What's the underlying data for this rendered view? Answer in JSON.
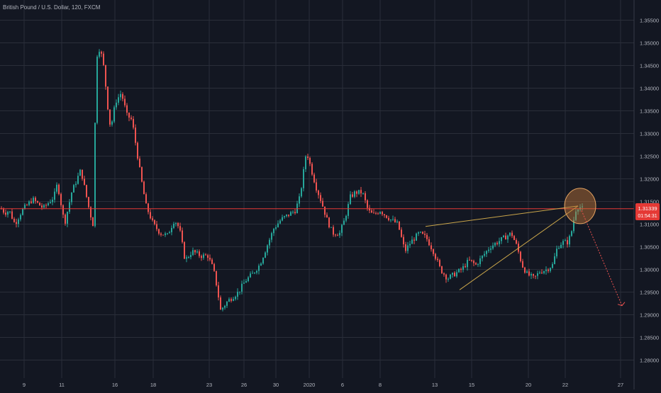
{
  "header": {
    "symbol_label": "British Pound / U.S. Dollar, 120, FXCM"
  },
  "price_tag": {
    "price": "1.31339",
    "countdown": "01:54:31"
  },
  "colors": {
    "background": "#131722",
    "grid": "#2a2e39",
    "axis_text": "#b2b5be",
    "up": "#26a69a",
    "down": "#ef5350",
    "level_line": "#e53935",
    "trend_line": "#c9a54a",
    "highlight_fill": "#c77b3a",
    "projection": "#ef5350"
  },
  "chart_data": {
    "type": "candlestick",
    "symbol": "British Pound / U.S. Dollar",
    "timeframe": "120",
    "source": "FXCM",
    "x_tick_labels": [
      "9",
      "11",
      "16",
      "18",
      "23",
      "26",
      "30",
      "2020",
      "6",
      "8",
      "13",
      "15",
      "20",
      "22",
      "27"
    ],
    "y_tick_labels": [
      "1.35500",
      "1.35000",
      "1.34500",
      "1.34000",
      "1.33500",
      "1.33000",
      "1.32500",
      "1.32000",
      "1.31500",
      "1.31000",
      "1.30500",
      "1.30000",
      "1.29500",
      "1.29000",
      "1.28500",
      "1.28000"
    ],
    "ylim": [
      1.2775,
      1.3585
    ],
    "last_price": 1.31339,
    "price_path": [
      [
        0,
        1.3135
      ],
      [
        6,
        1.3125
      ],
      [
        12,
        1.313
      ],
      [
        20,
        1.31
      ],
      [
        30,
        1.313
      ],
      [
        45,
        1.3155
      ],
      [
        60,
        1.3135
      ],
      [
        75,
        1.316
      ],
      [
        80,
        1.319
      ],
      [
        90,
        1.31
      ],
      [
        100,
        1.317
      ],
      [
        113,
        1.322
      ],
      [
        125,
        1.313
      ],
      [
        130,
        1.31
      ],
      [
        135,
        1.347
      ],
      [
        140,
        1.349
      ],
      [
        146,
        1.344
      ],
      [
        150,
        1.337
      ],
      [
        155,
        1.331
      ],
      [
        162,
        1.337
      ],
      [
        170,
        1.339
      ],
      [
        178,
        1.334
      ],
      [
        185,
        1.333
      ],
      [
        190,
        1.328
      ],
      [
        198,
        1.32
      ],
      [
        205,
        1.314
      ],
      [
        215,
        1.31
      ],
      [
        225,
        1.308
      ],
      [
        235,
        1.3075
      ],
      [
        245,
        1.311
      ],
      [
        252,
        1.309
      ],
      [
        260,
        1.302
      ],
      [
        270,
        1.304
      ],
      [
        282,
        1.303
      ],
      [
        292,
        1.303
      ],
      [
        300,
        1.3
      ],
      [
        305,
        1.296
      ],
      [
        310,
        1.291
      ],
      [
        320,
        1.293
      ],
      [
        335,
        1.295
      ],
      [
        345,
        1.2975
      ],
      [
        355,
        1.299
      ],
      [
        365,
        1.301
      ],
      [
        375,
        1.305
      ],
      [
        385,
        1.309
      ],
      [
        395,
        1.311
      ],
      [
        405,
        1.312
      ],
      [
        415,
        1.313
      ],
      [
        422,
        1.316
      ],
      [
        430,
        1.325
      ],
      [
        433,
        1.325
      ],
      [
        438,
        1.322
      ],
      [
        445,
        1.318
      ],
      [
        452,
        1.315
      ],
      [
        460,
        1.311
      ],
      [
        468,
        1.308
      ],
      [
        478,
        1.308
      ],
      [
        485,
        1.311
      ],
      [
        493,
        1.316
      ],
      [
        500,
        1.317
      ],
      [
        510,
        1.317
      ],
      [
        518,
        1.313
      ],
      [
        525,
        1.312
      ],
      [
        535,
        1.313
      ],
      [
        542,
        1.312
      ],
      [
        550,
        1.311
      ],
      [
        560,
        1.31
      ],
      [
        570,
        1.304
      ],
      [
        578,
        1.306
      ],
      [
        590,
        1.308
      ],
      [
        600,
        1.307
      ],
      [
        610,
        1.304
      ],
      [
        620,
        1.3
      ],
      [
        630,
        1.298
      ],
      [
        640,
        1.299
      ],
      [
        650,
        1.3
      ],
      [
        660,
        1.302
      ],
      [
        670,
        1.301
      ],
      [
        680,
        1.303
      ],
      [
        690,
        1.305
      ],
      [
        700,
        1.306
      ],
      [
        710,
        1.307
      ],
      [
        720,
        1.308
      ],
      [
        728,
        1.305
      ],
      [
        735,
        1.301
      ],
      [
        742,
        1.299
      ],
      [
        752,
        1.298
      ],
      [
        760,
        1.2995
      ],
      [
        770,
        1.3
      ],
      [
        778,
        1.301
      ],
      [
        785,
        1.305
      ],
      [
        792,
        1.306
      ],
      [
        800,
        1.306
      ],
      [
        806,
        1.309
      ],
      [
        810,
        1.313
      ],
      [
        815,
        1.314
      ],
      [
        820,
        1.31339
      ]
    ],
    "annotations": {
      "horizontal_level": 1.31339,
      "trend_lines": [
        {
          "from": [
            600,
            1.3095
          ],
          "to": [
            815,
            1.314
          ]
        },
        {
          "from": [
            648,
            1.2955
          ],
          "to": [
            815,
            1.314
          ]
        }
      ],
      "highlight_ellipse_center": [
        818,
        1.314
      ],
      "projection_arrow": {
        "from": [
          820,
          1.313
        ],
        "to": [
          877,
          1.292
        ]
      }
    },
    "grid": true
  }
}
